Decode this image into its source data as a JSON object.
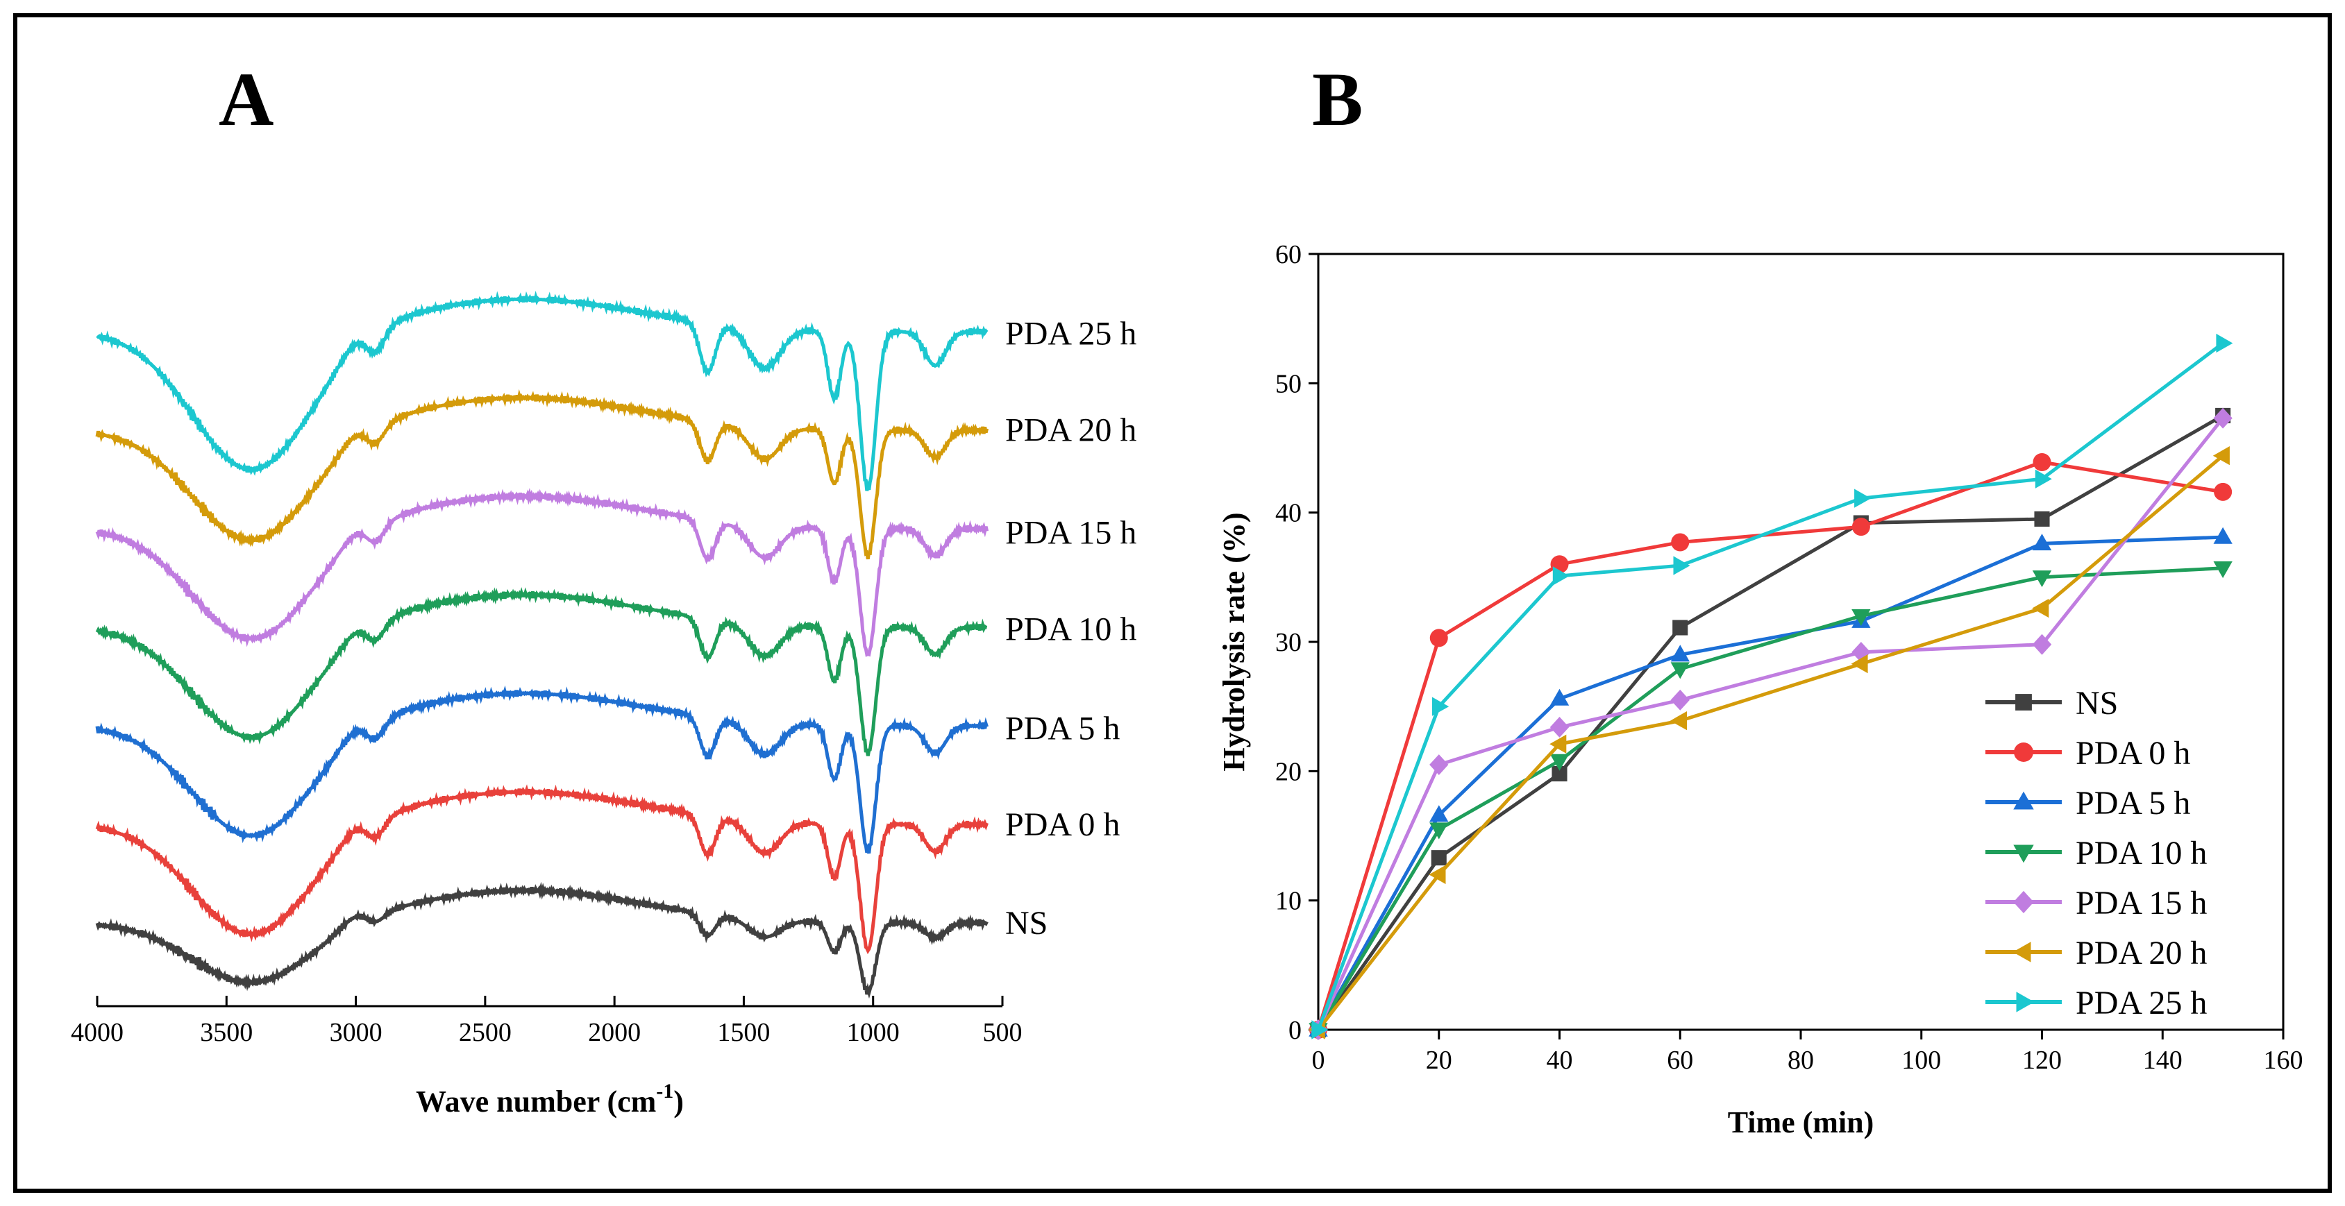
{
  "chart_data": [
    {
      "panel": "A",
      "type": "line",
      "xlabel": "Wave number (cm",
      "xlabel_sup": "-1",
      "xlabel_close": ")",
      "ylabel": "",
      "xlim": [
        4000,
        500
      ],
      "x_ticks": [
        "4000",
        "3500",
        "3000",
        "2500",
        "2000",
        "1500",
        "1000",
        "500"
      ],
      "series": [
        {
          "name": "NS",
          "color": "#404040",
          "offset": 0.0,
          "amp": 0.55
        },
        {
          "name": "PDA 0 h",
          "color": "#e8413b",
          "offset": 1.0,
          "amp": 1.0
        },
        {
          "name": "PDA 5 h",
          "color": "#1f6fd1",
          "offset": 2.0,
          "amp": 1.0
        },
        {
          "name": "PDA 10 h",
          "color": "#1f9e5a",
          "offset": 3.0,
          "amp": 1.0
        },
        {
          "name": "PDA 15 h",
          "color": "#c07de0",
          "offset": 4.0,
          "amp": 1.0
        },
        {
          "name": "PDA 20 h",
          "color": "#d49b0a",
          "offset": 5.0,
          "amp": 1.0
        },
        {
          "name": "PDA 25 h",
          "color": "#1cc7cf",
          "offset": 6.0,
          "amp": 1.25
        }
      ]
    },
    {
      "panel": "B",
      "type": "line",
      "xlabel": "Time (min)",
      "ylabel": "Hydrolysis rate (%)",
      "xlim": [
        0,
        160
      ],
      "ylim": [
        0,
        60
      ],
      "x_ticks": [
        0,
        20,
        40,
        60,
        80,
        100,
        120,
        140,
        160
      ],
      "y_ticks": [
        0,
        10,
        20,
        30,
        40,
        50,
        60
      ],
      "x": [
        0,
        20,
        40,
        60,
        90,
        120,
        150
      ],
      "legend_position": "bottom-right",
      "series": [
        {
          "name": "NS",
          "color": "#404040",
          "marker": "square",
          "values": [
            0,
            13.3,
            19.8,
            31.1,
            39.2,
            39.5,
            47.5
          ]
        },
        {
          "name": "PDA 0 h",
          "color": "#f03a3a",
          "marker": "circle",
          "values": [
            0,
            30.3,
            36.0,
            37.7,
            38.9,
            43.9,
            41.6
          ]
        },
        {
          "name": "PDA 5 h",
          "color": "#1b6fd6",
          "marker": "triangle-up",
          "values": [
            0,
            16.6,
            25.6,
            29.0,
            31.6,
            37.6,
            38.1
          ]
        },
        {
          "name": "PDA 10 h",
          "color": "#1f9e5a",
          "marker": "triangle-down",
          "values": [
            0,
            15.5,
            20.8,
            27.9,
            32.0,
            35.0,
            35.7
          ]
        },
        {
          "name": "PDA 15 h",
          "color": "#c07de0",
          "marker": "diamond",
          "values": [
            0,
            20.5,
            23.4,
            25.5,
            29.2,
            29.8,
            47.3
          ]
        },
        {
          "name": "PDA 20 h",
          "color": "#d49b0a",
          "marker": "triangle-left",
          "values": [
            0,
            12.0,
            22.1,
            23.9,
            28.3,
            32.6,
            44.4
          ]
        },
        {
          "name": "PDA 25 h",
          "color": "#1cc7cf",
          "marker": "triangle-right",
          "values": [
            0,
            25.0,
            35.1,
            35.9,
            41.1,
            42.6,
            53.1
          ]
        }
      ]
    }
  ],
  "panel_labels": {
    "a": "A",
    "b": "B"
  }
}
